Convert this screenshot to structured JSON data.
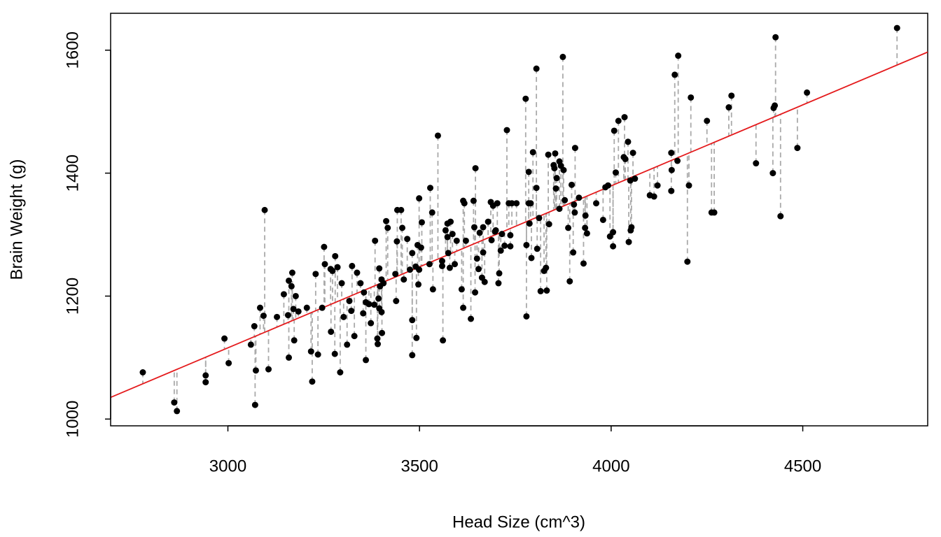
{
  "chart_data": {
    "type": "scatter",
    "x_label": "Head Size (cm^3)",
    "y_label": "Brain Weight (g)",
    "xlim": [
      2694,
      4826
    ],
    "ylim": [
      989,
      1660
    ],
    "xticks": [
      3000,
      3500,
      4000,
      4500
    ],
    "yticks": [
      1000,
      1200,
      1400,
      1600
    ],
    "color": "#000000",
    "residual_color": "#aaaaaa",
    "regression": {
      "intercept": 325.57,
      "slope": 0.26343,
      "color": "#e41a1c"
    },
    "x": [
      2778,
      2860,
      2867,
      2942,
      2942,
      2991,
      3002,
      3060,
      3069,
      3073,
      3071,
      3084,
      3093,
      3096,
      3106,
      3128,
      3146,
      3157,
      3159,
      3159,
      3166,
      3168,
      3173,
      3171,
      3177,
      3184,
      3206,
      3217,
      3220,
      3229,
      3235,
      3246,
      3251,
      3253,
      3268,
      3269,
      3273,
      3280,
      3279,
      3286,
      3293,
      3297,
      3302,
      3311,
      3317,
      3322,
      3324,
      3330,
      3337,
      3346,
      3353,
      3355,
      3360,
      3360,
      3368,
      3373,
      3382,
      3384,
      3390,
      3391,
      3393,
      3395,
      3395,
      3397,
      3401,
      3401,
      3402,
      3406,
      3413,
      3417,
      3437,
      3439,
      3442,
      3441,
      3452,
      3455,
      3459,
      3468,
      3475,
      3481,
      3481,
      3481,
      3490,
      3492,
      3495,
      3497,
      3499,
      3499,
      3504,
      3506,
      3526,
      3528,
      3533,
      3535,
      3548,
      3559,
      3559,
      3561,
      3568,
      3573,
      3573,
      3575,
      3579,
      3581,
      3586,
      3592,
      3597,
      3610,
      3614,
      3614,
      3617,
      3621,
      3634,
      3641,
      3643,
      3645,
      3646,
      3650,
      3654,
      3657,
      3663,
      3666,
      3666,
      3670,
      3679,
      3686,
      3688,
      3692,
      3697,
      3699,
      3703,
      3706,
      3708,
      3712,
      3715,
      3722,
      3728,
      3733,
      3737,
      3737,
      3741,
      3753,
      3777,
      3779,
      3779,
      3785,
      3785,
      3787,
      3790,
      3792,
      3796,
      3805,
      3805,
      3807,
      3812,
      3816,
      3825,
      3830,
      3832,
      3836,
      3838,
      3850,
      3852,
      3854,
      3856,
      3858,
      3865,
      3865,
      3869,
      3874,
      3876,
      3879,
      3888,
      3892,
      3897,
      3901,
      3903,
      3905,
      3906,
      3916,
      3928,
      3932,
      3933,
      3937,
      3961,
      3979,
      3985,
      3992,
      3997,
      4005,
      4005,
      4008,
      4012,
      4019,
      4033,
      4035,
      4037,
      4044,
      4046,
      4050,
      4051,
      4053,
      4057,
      4062,
      4101,
      4112,
      4121,
      4157,
      4157,
      4158,
      4166,
      4173,
      4175,
      4199,
      4203,
      4208,
      4250,
      4262,
      4269,
      4307,
      4314,
      4378,
      4422,
      4424,
      4427,
      4429,
      4442,
      4486,
      4511,
      4746
    ],
    "y": [
      1076,
      1027,
      1013,
      1071,
      1060,
      1131,
      1091,
      1121,
      1151,
      1079,
      1023,
      1181,
      1168,
      1340,
      1081,
      1166,
      1203,
      1169,
      1100,
      1225,
      1216,
      1238,
      1128,
      1179,
      1200,
      1175,
      1181,
      1110,
      1061,
      1236,
      1105,
      1181,
      1280,
      1252,
      1244,
      1142,
      1241,
      1265,
      1106,
      1247,
      1076,
      1221,
      1166,
      1121,
      1192,
      1176,
      1249,
      1135,
      1238,
      1221,
      1172,
      1206,
      1190,
      1096,
      1187,
      1156,
      1186,
      1290,
      1131,
      1122,
      1196,
      1180,
      1245,
      1216,
      1174,
      1227,
      1140,
      1221,
      1322,
      1311,
      1236,
      1192,
      1340,
      1289,
      1340,
      1311,
      1227,
      1293,
      1243,
      1270,
      1104,
      1161,
      1248,
      1132,
      1283,
      1219,
      1359,
      1243,
      1279,
      1320,
      1252,
      1376,
      1336,
      1211,
      1461,
      1257,
      1249,
      1128,
      1307,
      1296,
      1318,
      1270,
      1246,
      1321,
      1301,
      1252,
      1290,
      1211,
      1355,
      1181,
      1351,
      1290,
      1163,
      1355,
      1312,
      1206,
      1408,
      1261,
      1244,
      1303,
      1230,
      1271,
      1312,
      1223,
      1321,
      1353,
      1291,
      1347,
      1305,
      1307,
      1351,
      1221,
      1237,
      1274,
      1301,
      1282,
      1470,
      1351,
      1281,
      1299,
      1351,
      1351,
      1521,
      1167,
      1283,
      1402,
      1351,
      1318,
      1351,
      1262,
      1434,
      1570,
      1376,
      1277,
      1327,
      1208,
      1241,
      1246,
      1209,
      1430,
      1317,
      1413,
      1408,
      1432,
      1375,
      1392,
      1419,
      1342,
      1412,
      1589,
      1405,
      1356,
      1311,
      1224,
      1381,
      1271,
      1349,
      1336,
      1441,
      1360,
      1253,
      1311,
      1331,
      1302,
      1351,
      1324,
      1377,
      1380,
      1297,
      1304,
      1281,
      1469,
      1401,
      1485,
      1426,
      1491,
      1423,
      1451,
      1288,
      1388,
      1307,
      1312,
      1433,
      1391,
      1364,
      1362,
      1380,
      1371,
      1433,
      1405,
      1560,
      1420,
      1591,
      1256,
      1380,
      1523,
      1485,
      1336,
      1336,
      1507,
      1526,
      1416,
      1400,
      1506,
      1510,
      1621,
      1330,
      1441,
      1531,
      1636
    ]
  }
}
